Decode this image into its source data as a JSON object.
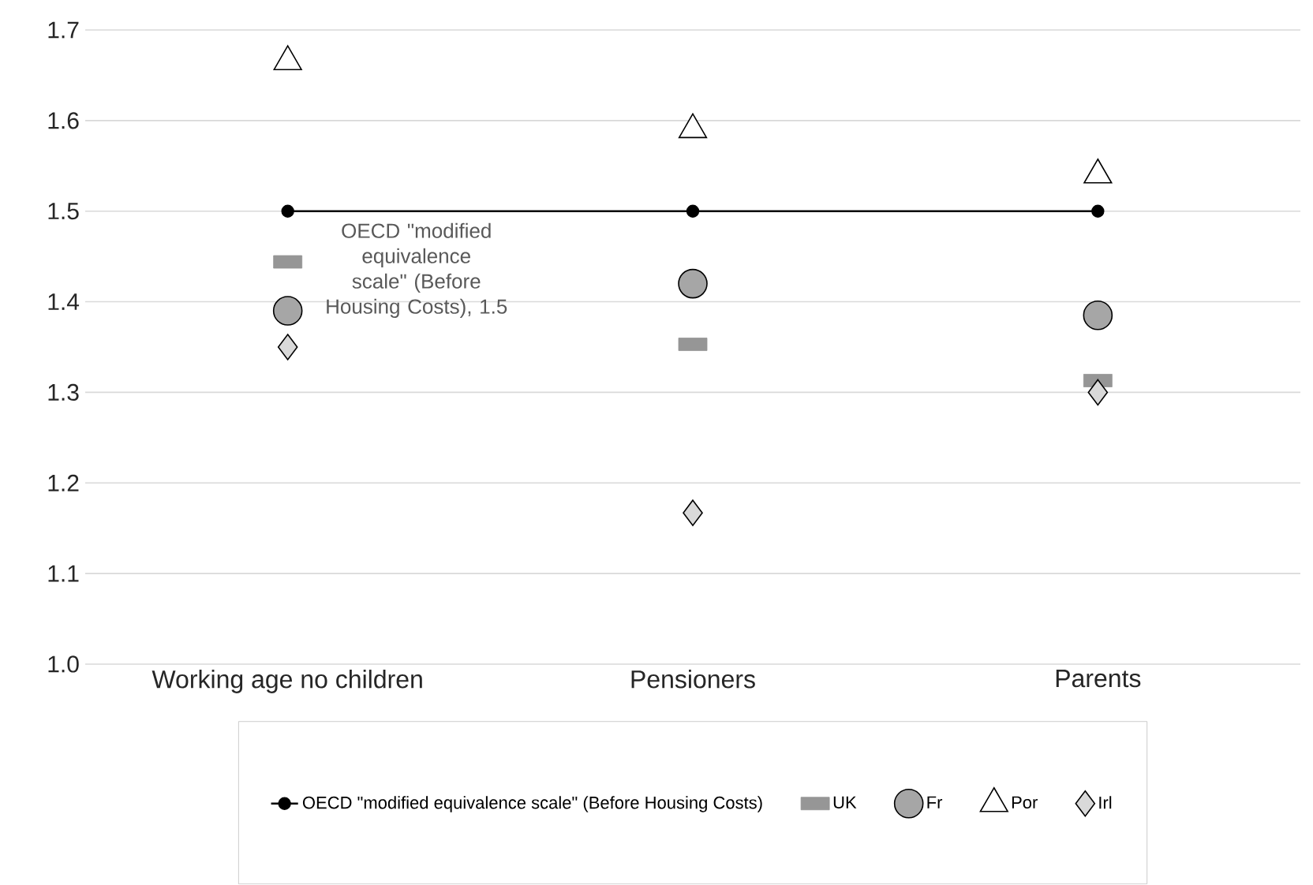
{
  "chart_data": {
    "type": "scatter",
    "categories": [
      "Working age no children",
      "Pensioners",
      "Parents"
    ],
    "series": [
      {
        "name": "OECD \"modified equivalence scale\" (Before Housing Costs)",
        "type": "line",
        "marker": "circle",
        "color": "#000000",
        "values": [
          1.5,
          1.5,
          1.5
        ]
      },
      {
        "name": "UK",
        "marker": "square",
        "color": "#969696",
        "values": [
          1.444,
          1.353,
          1.313
        ]
      },
      {
        "name": "Fr",
        "marker": "circle",
        "color": "#a6a6a6",
        "values": [
          1.39,
          1.42,
          1.385
        ]
      },
      {
        "name": "Por",
        "marker": "triangle",
        "color": "#ffffff",
        "values": [
          1.665,
          1.59,
          1.54
        ]
      },
      {
        "name": "Irl",
        "marker": "diamond",
        "color": "#d9d9d9",
        "values": [
          1.35,
          1.167,
          1.3
        ]
      }
    ],
    "ylim": [
      1.0,
      1.7
    ],
    "yticks": [
      {
        "value": 1.0,
        "label": "1.0"
      },
      {
        "value": 1.1,
        "label": "1.1"
      },
      {
        "value": 1.2,
        "label": "1.2"
      },
      {
        "value": 1.3,
        "label": "1.3"
      },
      {
        "value": 1.4,
        "label": "1.4"
      },
      {
        "value": 1.5,
        "label": "1.5"
      },
      {
        "value": 1.6,
        "label": "1.6"
      },
      {
        "value": 1.7,
        "label": "1.7"
      }
    ],
    "grid": "y",
    "legend": "bottom",
    "annotations": [
      {
        "text": "OECD \"modified equivalence scale\" (Before Housing Costs), 1.5",
        "x": "Working age no children",
        "y": 1.5
      }
    ]
  }
}
